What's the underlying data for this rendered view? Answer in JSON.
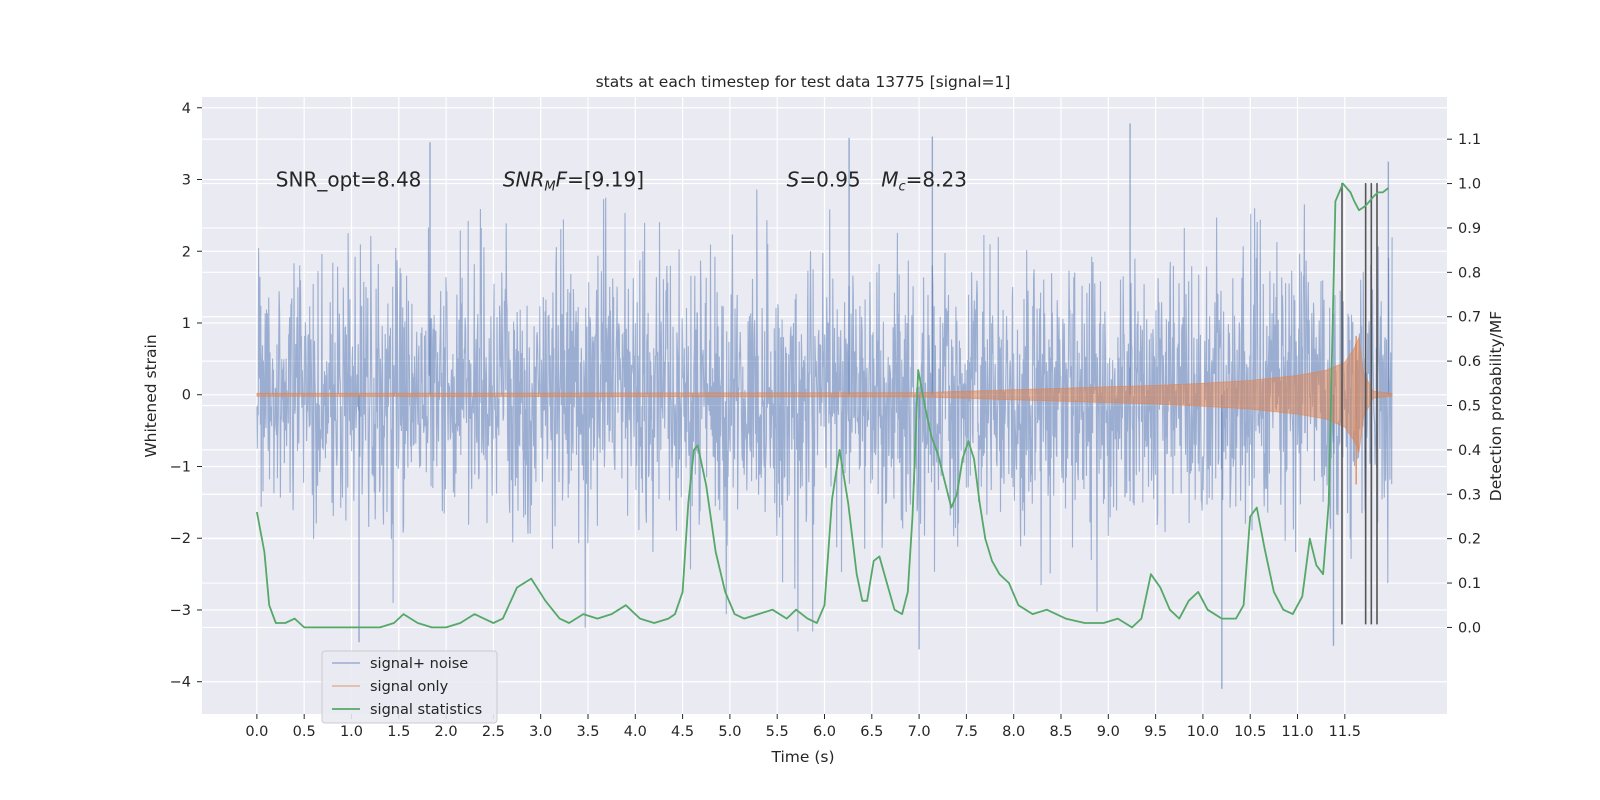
{
  "chart_data": {
    "type": "line",
    "title": "stats at each timestep for test data 13775 [signal=1]",
    "xlabel": "Time (s)",
    "ylabel_left": "Whitened strain",
    "ylabel_right": "Detection probability/MF",
    "xlim": [
      -0.58,
      12.58
    ],
    "ylim_left": [
      -4.45,
      4.15
    ],
    "ylim_right": [
      -0.195,
      1.195
    ],
    "x_ticks": [
      0.0,
      0.5,
      1.0,
      1.5,
      2.0,
      2.5,
      3.0,
      3.5,
      4.0,
      4.5,
      5.0,
      5.5,
      6.0,
      6.5,
      7.0,
      7.5,
      8.0,
      8.5,
      9.0,
      9.5,
      10.0,
      10.5,
      11.0,
      11.5
    ],
    "x_tick_labels": [
      "0.0",
      "0.5",
      "1.0",
      "1.5",
      "2.0",
      "2.5",
      "3.0",
      "3.5",
      "4.0",
      "4.5",
      "5.0",
      "5.5",
      "6.0",
      "6.5",
      "7.0",
      "7.5",
      "8.0",
      "8.5",
      "9.0",
      "9.5",
      "10.0",
      "10.5",
      "11.0",
      "11.5"
    ],
    "y_left_ticks": [
      -4,
      -3,
      -2,
      -1,
      0,
      1,
      2,
      3,
      4
    ],
    "y_left_tick_labels": [
      "−4",
      "−3",
      "−2",
      "−1",
      "0",
      "1",
      "2",
      "3",
      "4"
    ],
    "y_right_ticks": [
      0.0,
      0.1,
      0.2,
      0.3,
      0.4,
      0.5,
      0.6,
      0.7,
      0.8,
      0.9,
      1.0,
      1.1
    ],
    "y_right_tick_labels": [
      "0.0",
      "0.1",
      "0.2",
      "0.3",
      "0.4",
      "0.5",
      "0.6",
      "0.7",
      "0.8",
      "0.9",
      "1.0",
      "1.1"
    ],
    "grid": true,
    "legend_position": "lower-left",
    "series": [
      {
        "name": "signal+ noise",
        "axis": "left",
        "color": "#4c72b0",
        "description_of_values": "whitened strain, approx. Gaussian noise, x from 0.0 to 12.0 s",
        "x_range": [
          0.0,
          12.0
        ],
        "typical_amplitude": 1.2,
        "peak_values": [
          {
            "x": 1.83,
            "y": 3.52
          },
          {
            "x": 6.26,
            "y": 3.58
          },
          {
            "x": 7.14,
            "y": 3.6
          },
          {
            "x": 9.23,
            "y": 3.78
          },
          {
            "x": 11.96,
            "y": 3.25
          },
          {
            "x": 1.08,
            "y": -3.45
          },
          {
            "x": 7.0,
            "y": -3.55
          },
          {
            "x": 10.2,
            "y": -4.1
          },
          {
            "x": 11.38,
            "y": -3.5
          }
        ]
      },
      {
        "name": "signal only",
        "axis": "left",
        "color": "#dd8452",
        "description_of_values": "chirp envelope (y = ± amplitude), merger near 11.65 s",
        "x": [
          0.0,
          7.0,
          7.5,
          8.0,
          8.5,
          9.0,
          9.5,
          10.0,
          10.5,
          11.0,
          11.3,
          11.5,
          11.6,
          11.65,
          11.7,
          11.8,
          12.0
        ],
        "envelope": [
          0.02,
          0.03,
          0.05,
          0.07,
          0.09,
          0.11,
          0.13,
          0.16,
          0.2,
          0.27,
          0.34,
          0.45,
          0.65,
          0.8,
          0.3,
          0.05,
          0.02
        ]
      },
      {
        "name": "signal statistics",
        "axis": "right",
        "color": "#55a868",
        "x": [
          0.0,
          0.08,
          0.13,
          0.2,
          0.3,
          0.4,
          0.5,
          0.7,
          0.9,
          1.1,
          1.3,
          1.45,
          1.55,
          1.7,
          1.85,
          2.0,
          2.15,
          2.3,
          2.4,
          2.5,
          2.6,
          2.75,
          2.9,
          3.05,
          3.2,
          3.3,
          3.45,
          3.6,
          3.75,
          3.9,
          4.05,
          4.2,
          4.35,
          4.42,
          4.5,
          4.56,
          4.62,
          4.66,
          4.75,
          4.85,
          4.95,
          5.05,
          5.15,
          5.3,
          5.45,
          5.6,
          5.7,
          5.82,
          5.92,
          6.0,
          6.08,
          6.16,
          6.25,
          6.34,
          6.4,
          6.45,
          6.52,
          6.58,
          6.66,
          6.74,
          6.82,
          6.88,
          6.93,
          6.99,
          7.06,
          7.13,
          7.2,
          7.27,
          7.34,
          7.4,
          7.46,
          7.52,
          7.58,
          7.64,
          7.7,
          7.77,
          7.85,
          7.95,
          8.05,
          8.2,
          8.35,
          8.55,
          8.75,
          8.95,
          9.1,
          9.25,
          9.35,
          9.45,
          9.55,
          9.65,
          9.75,
          9.85,
          9.95,
          10.05,
          10.2,
          10.35,
          10.43,
          10.5,
          10.57,
          10.65,
          10.75,
          10.85,
          10.95,
          11.05,
          11.13,
          11.2,
          11.27,
          11.33,
          11.4,
          11.48,
          11.52,
          11.56,
          11.6,
          11.65,
          11.72,
          11.8,
          11.85,
          11.9,
          11.96
        ],
        "y": [
          0.26,
          0.17,
          0.05,
          0.01,
          0.01,
          0.02,
          0.0,
          0.0,
          0.0,
          0.0,
          0.0,
          0.01,
          0.03,
          0.01,
          0.0,
          0.0,
          0.01,
          0.03,
          0.02,
          0.01,
          0.02,
          0.09,
          0.11,
          0.06,
          0.02,
          0.01,
          0.03,
          0.02,
          0.03,
          0.05,
          0.02,
          0.01,
          0.02,
          0.03,
          0.08,
          0.28,
          0.4,
          0.41,
          0.32,
          0.17,
          0.08,
          0.03,
          0.02,
          0.03,
          0.04,
          0.02,
          0.04,
          0.02,
          0.01,
          0.05,
          0.29,
          0.4,
          0.28,
          0.12,
          0.06,
          0.06,
          0.15,
          0.16,
          0.1,
          0.04,
          0.03,
          0.08,
          0.25,
          0.58,
          0.5,
          0.43,
          0.39,
          0.33,
          0.27,
          0.3,
          0.38,
          0.42,
          0.38,
          0.28,
          0.2,
          0.15,
          0.12,
          0.1,
          0.05,
          0.03,
          0.04,
          0.02,
          0.01,
          0.01,
          0.02,
          0.0,
          0.02,
          0.12,
          0.09,
          0.04,
          0.02,
          0.06,
          0.08,
          0.04,
          0.02,
          0.02,
          0.05,
          0.25,
          0.27,
          0.18,
          0.08,
          0.04,
          0.03,
          0.07,
          0.2,
          0.14,
          0.12,
          0.28,
          0.96,
          1.0,
          0.99,
          0.98,
          0.96,
          0.94,
          0.95,
          0.97,
          0.98,
          0.98,
          0.99
        ]
      }
    ],
    "vertical_lines": {
      "color": "#555555",
      "x": [
        11.47,
        11.72,
        11.78,
        11.84
      ],
      "ymin_left": -3.2,
      "ymax_left": 2.95
    },
    "annotations": [
      {
        "text": "SNR_opt=8.48",
        "x": 0.2,
        "y": 3.0
      },
      {
        "text": "SNR_MF=[9.19]",
        "x": 2.6,
        "y": 3.0
      },
      {
        "text": "S=0.95",
        "x": 5.6,
        "y": 3.0
      },
      {
        "text": "Mc=8.23",
        "x": 6.6,
        "y": 3.0
      }
    ],
    "legend": [
      "signal+ noise",
      "signal only",
      "signal statistics"
    ]
  }
}
